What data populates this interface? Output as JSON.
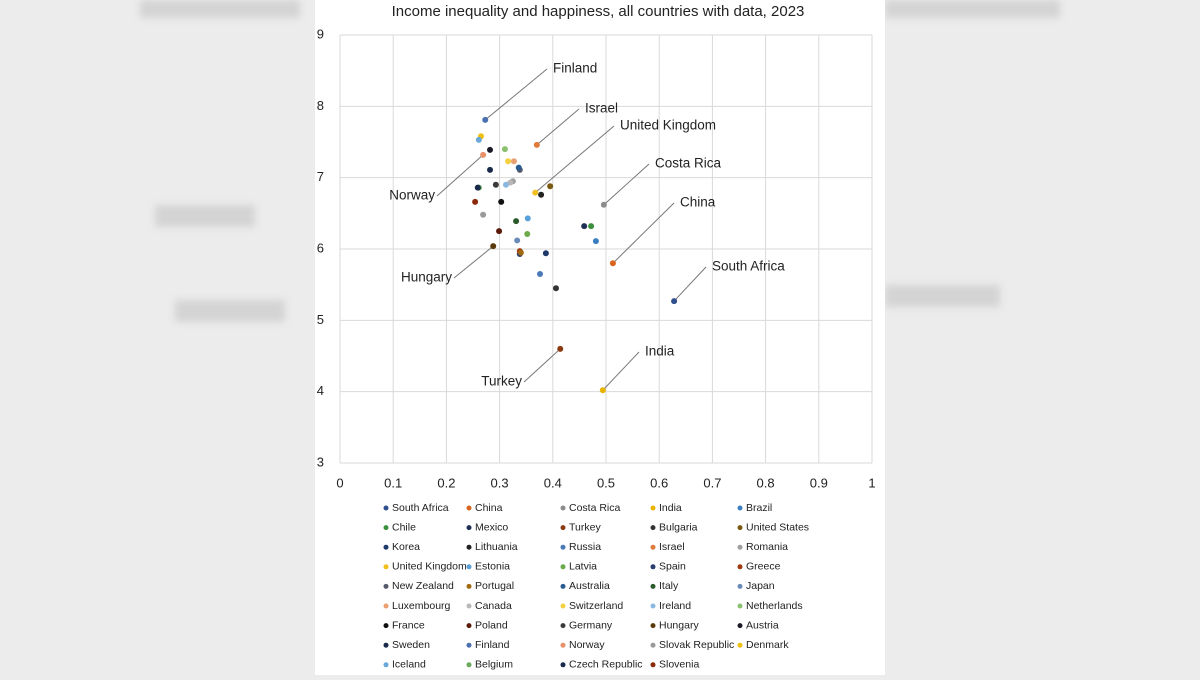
{
  "chart_data": {
    "type": "scatter",
    "title": "Income inequality and happiness, all countries with data, 2023",
    "xlim": [
      0,
      1
    ],
    "xticks": [
      0,
      0.1,
      0.2,
      0.3,
      0.4,
      0.5,
      0.6,
      0.7,
      0.8,
      0.9,
      1
    ],
    "ylim": [
      3,
      9
    ],
    "yticks": [
      3,
      4,
      5,
      6,
      7,
      8,
      9
    ],
    "grid": true,
    "series": [
      {
        "name": "South Africa",
        "color": "#2f4f8f",
        "x": [
          0.628
        ],
        "values": [
          5.27
        ]
      },
      {
        "name": "China",
        "color": "#d9641e",
        "x": [
          0.513
        ],
        "values": [
          5.8
        ]
      },
      {
        "name": "Costa Rica",
        "color": "#8c8c8c",
        "x": [
          0.496
        ],
        "values": [
          6.62
        ]
      },
      {
        "name": "India",
        "color": "#e8b400",
        "x": [
          0.494
        ],
        "values": [
          4.02
        ]
      },
      {
        "name": "Brazil",
        "color": "#3c7fc0",
        "x": [
          0.481
        ],
        "values": [
          6.11
        ]
      },
      {
        "name": "Chile",
        "color": "#3c8f3c",
        "x": [
          0.472
        ],
        "values": [
          6.32
        ]
      },
      {
        "name": "Mexico",
        "color": "#1f2f55",
        "x": [
          0.459
        ],
        "values": [
          6.32
        ]
      },
      {
        "name": "Turkey",
        "color": "#8a3a10",
        "x": [
          0.414
        ],
        "values": [
          4.6
        ]
      },
      {
        "name": "Bulgaria",
        "color": "#333333",
        "x": [
          0.406
        ],
        "values": [
          5.45
        ]
      },
      {
        "name": "United States",
        "color": "#7a5a10",
        "x": [
          0.395
        ],
        "values": [
          6.88
        ]
      },
      {
        "name": "Korea",
        "color": "#1f3a6a",
        "x": [
          0.387
        ],
        "values": [
          5.94
        ]
      },
      {
        "name": "Lithuania",
        "color": "#222222",
        "x": [
          0.378
        ],
        "values": [
          6.76
        ]
      },
      {
        "name": "Russia",
        "color": "#4a7ab8",
        "x": [
          0.376
        ],
        "values": [
          5.65
        ]
      },
      {
        "name": "Israel",
        "color": "#e07a3a",
        "x": [
          0.37
        ],
        "values": [
          7.46
        ]
      },
      {
        "name": "Romania",
        "color": "#a0a0a0",
        "x": [
          0.325
        ],
        "values": [
          6.95
        ]
      },
      {
        "name": "United Kingdom",
        "color": "#f0c020",
        "x": [
          0.367
        ],
        "values": [
          6.79
        ]
      },
      {
        "name": "Estonia",
        "color": "#5aa0d8",
        "x": [
          0.353
        ],
        "values": [
          6.43
        ]
      },
      {
        "name": "Latvia",
        "color": "#6aaa4a",
        "x": [
          0.352
        ],
        "values": [
          6.21
        ]
      },
      {
        "name": "Spain",
        "color": "#2a3f70",
        "x": [
          0.338
        ],
        "values": [
          5.93
        ]
      },
      {
        "name": "Greece",
        "color": "#a03a10",
        "x": [
          0.338
        ],
        "values": [
          5.97
        ]
      },
      {
        "name": "New Zealand",
        "color": "#555a6a",
        "x": [
          0.338
        ],
        "values": [
          7.11
        ]
      },
      {
        "name": "Portugal",
        "color": "#a06a10",
        "x": [
          0.34
        ],
        "values": [
          5.95
        ]
      },
      {
        "name": "Australia",
        "color": "#2a5a90",
        "x": [
          0.336
        ],
        "values": [
          7.14
        ]
      },
      {
        "name": "Italy",
        "color": "#2a5a2a",
        "x": [
          0.331
        ],
        "values": [
          6.39
        ]
      },
      {
        "name": "Japan",
        "color": "#6a8ab8",
        "x": [
          0.333
        ],
        "values": [
          6.12
        ]
      },
      {
        "name": "Luxembourg",
        "color": "#e8a070",
        "x": [
          0.327
        ],
        "values": [
          7.23
        ]
      },
      {
        "name": "Canada",
        "color": "#b8b8b8",
        "x": [
          0.32
        ],
        "values": [
          6.93
        ]
      },
      {
        "name": "Switzerland",
        "color": "#f5d040",
        "x": [
          0.316
        ],
        "values": [
          7.23
        ]
      },
      {
        "name": "Ireland",
        "color": "#8ab8e0",
        "x": [
          0.312
        ],
        "values": [
          6.9
        ]
      },
      {
        "name": "Netherlands",
        "color": "#8ac070",
        "x": [
          0.31
        ],
        "values": [
          7.4
        ]
      },
      {
        "name": "France",
        "color": "#111111",
        "x": [
          0.303
        ],
        "values": [
          6.66
        ]
      },
      {
        "name": "Poland",
        "color": "#5a1a0a",
        "x": [
          0.299
        ],
        "values": [
          6.25
        ]
      },
      {
        "name": "Germany",
        "color": "#3a3a3a",
        "x": [
          0.293
        ],
        "values": [
          6.9
        ]
      },
      {
        "name": "Hungary",
        "color": "#5a3a0a",
        "x": [
          0.288
        ],
        "values": [
          6.04
        ]
      },
      {
        "name": "Austria",
        "color": "#1a1a2a",
        "x": [
          0.282
        ],
        "values": [
          7.39
        ]
      },
      {
        "name": "Sweden",
        "color": "#1a2a4a",
        "x": [
          0.282
        ],
        "values": [
          7.11
        ]
      },
      {
        "name": "Finland",
        "color": "#4a70b0",
        "x": [
          0.273
        ],
        "values": [
          7.81
        ]
      },
      {
        "name": "Norway",
        "color": "#e8906a",
        "x": [
          0.269
        ],
        "values": [
          7.32
        ]
      },
      {
        "name": "Slovak Republic",
        "color": "#9a9a9a",
        "x": [
          0.269
        ],
        "values": [
          6.48
        ]
      },
      {
        "name": "Denmark",
        "color": "#f0c010",
        "x": [
          0.265
        ],
        "values": [
          7.58
        ]
      },
      {
        "name": "Iceland",
        "color": "#6aa8d8",
        "x": [
          0.261
        ],
        "values": [
          7.53
        ]
      },
      {
        "name": "Belgium",
        "color": "#6aaa5a",
        "x": [
          0.261
        ],
        "values": [
          6.86
        ]
      },
      {
        "name": "Czech Republic",
        "color": "#1a2a4a",
        "x": [
          0.259
        ],
        "values": [
          6.86
        ]
      },
      {
        "name": "Slovenia",
        "color": "#8a2a0a",
        "x": [
          0.254
        ],
        "values": [
          6.66
        ]
      }
    ],
    "annotations": [
      {
        "text": "Finland",
        "series": 36
      },
      {
        "text": "Israel",
        "series": 13
      },
      {
        "text": "United Kingdom",
        "series": 15
      },
      {
        "text": "Costa Rica",
        "series": 2
      },
      {
        "text": "China",
        "series": 1
      },
      {
        "text": "South Africa",
        "series": 0
      },
      {
        "text": "India",
        "series": 3
      },
      {
        "text": "Turkey",
        "series": 7
      },
      {
        "text": "Hungary",
        "series": 33
      },
      {
        "text": "Norway",
        "series": 37
      }
    ]
  }
}
